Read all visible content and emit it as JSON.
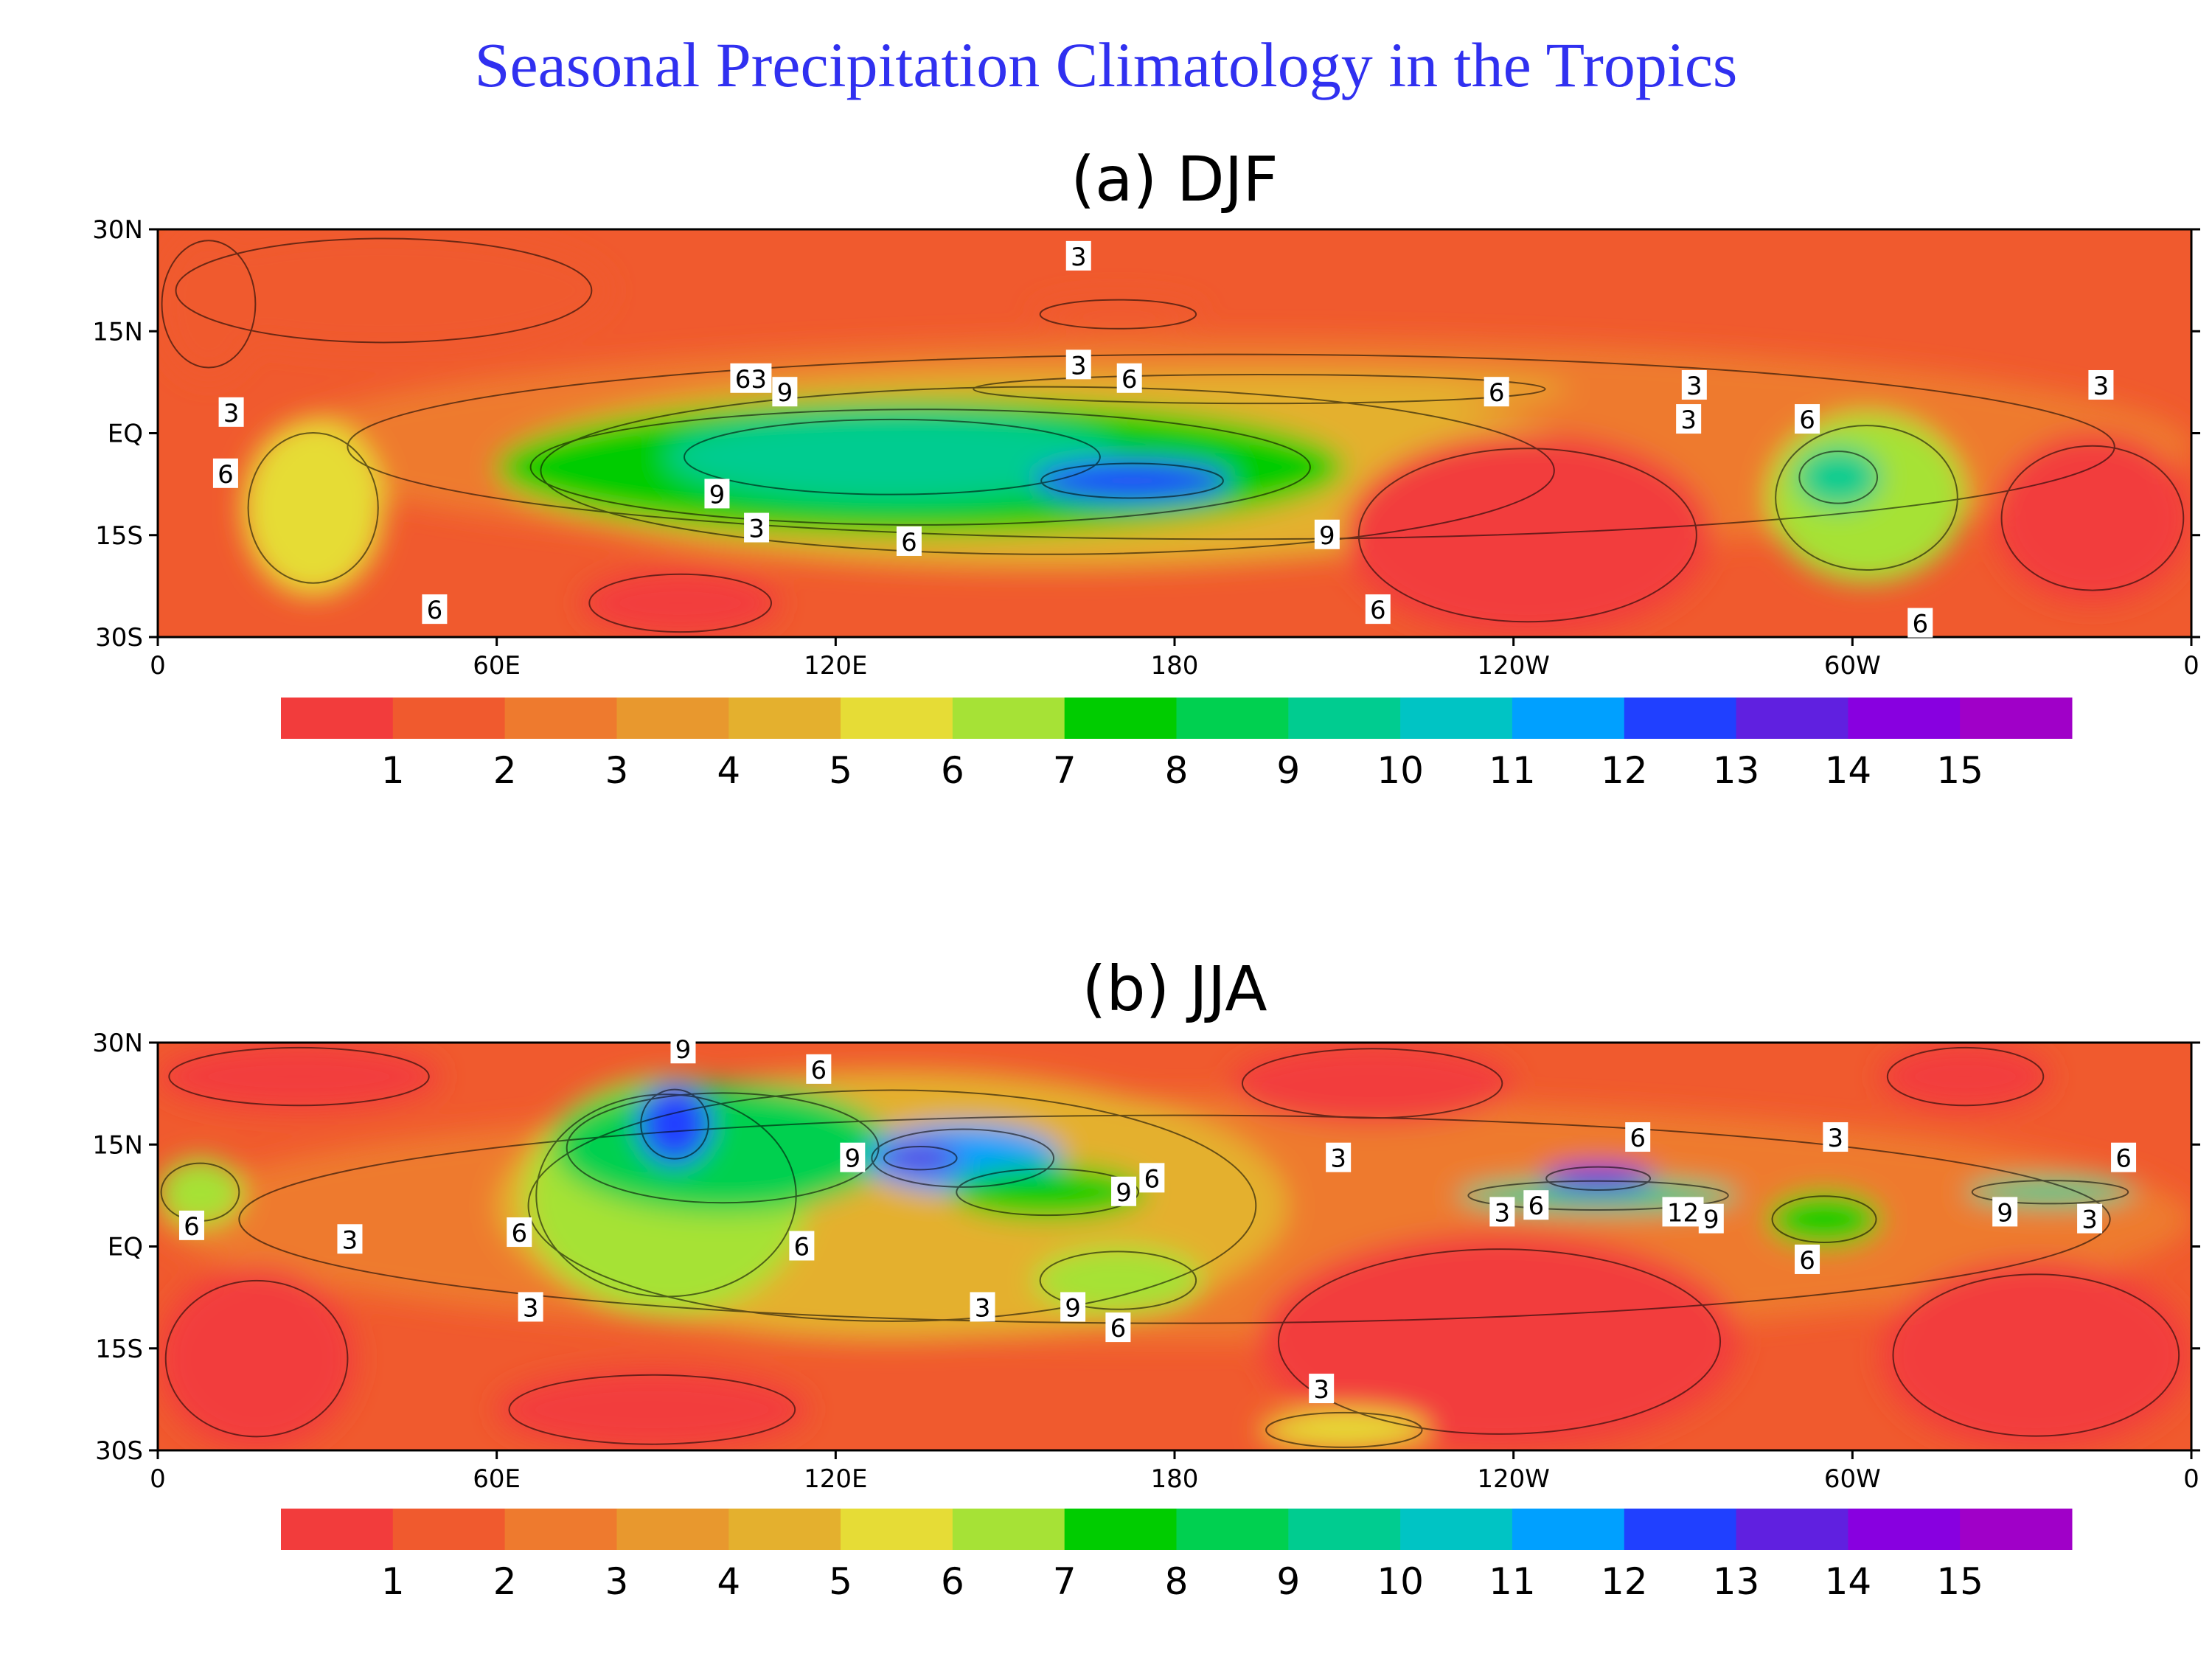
{
  "title": "Seasonal Precipitation Climatology in the Tropics",
  "colors": {
    "title": "#3030f0",
    "ocean_dry": "#f23c3c",
    "land_line": "#000000"
  },
  "colorbar": {
    "colors": [
      "#f23c3c",
      "#f05a2e",
      "#ee7a2e",
      "#e8982e",
      "#e4b02e",
      "#e6dc36",
      "#a6e236",
      "#00cc00",
      "#00d050",
      "#00cc90",
      "#00c4c4",
      "#00a0ff",
      "#2040ff",
      "#6020e0",
      "#8800e0",
      "#a000c8"
    ],
    "labels": [
      "1",
      "2",
      "3",
      "4",
      "5",
      "6",
      "7",
      "8",
      "9",
      "10",
      "11",
      "12",
      "13",
      "14",
      "15"
    ]
  },
  "axes": {
    "y_ticks": [
      "30N",
      "15N",
      "EQ",
      "15S",
      "30S"
    ],
    "x_ticks": [
      "0",
      "60E",
      "120E",
      "180",
      "120W",
      "60W",
      "0"
    ]
  },
  "panels": [
    {
      "title": "(a) DJF",
      "contour_labels": [
        {
          "text": "3",
          "lon": 163,
          "lat": 26
        },
        {
          "text": "3",
          "lon": 163,
          "lat": 10
        },
        {
          "text": "6",
          "lon": 172,
          "lat": 8
        },
        {
          "text": "6",
          "lon": 237,
          "lat": 6
        },
        {
          "text": "3",
          "lon": 272,
          "lat": 7
        },
        {
          "text": "3",
          "lon": 271,
          "lat": 2
        },
        {
          "text": "6",
          "lon": 292,
          "lat": 2
        },
        {
          "text": "3",
          "lon": 344,
          "lat": 7
        },
        {
          "text": "63",
          "lon": 105,
          "lat": 8
        },
        {
          "text": "9",
          "lon": 111,
          "lat": 6
        },
        {
          "text": "3",
          "lon": 13,
          "lat": 3
        },
        {
          "text": "6",
          "lon": 12,
          "lat": -6
        },
        {
          "text": "9",
          "lon": 99,
          "lat": -9
        },
        {
          "text": "3",
          "lon": 106,
          "lat": -14
        },
        {
          "text": "6",
          "lon": 133,
          "lat": -16
        },
        {
          "text": "9",
          "lon": 207,
          "lat": -15
        },
        {
          "text": "6",
          "lon": 216,
          "lat": -26
        },
        {
          "text": "6",
          "lon": 49,
          "lat": -26
        },
        {
          "text": "6",
          "lon": 312,
          "lat": -28
        }
      ],
      "zones": [
        {
          "level": 2,
          "lon": [
            20,
            360
          ],
          "lat": [
            -18,
            14
          ]
        },
        {
          "level": 4,
          "lon": [
            60,
            255
          ],
          "lat": [
            -20,
            9
          ]
        },
        {
          "level": 5,
          "lon": [
            15,
            40
          ],
          "lat": [
            -24,
            2
          ]
        },
        {
          "level": 7,
          "lon": [
            60,
            210
          ],
          "lat": [
            -15,
            5
          ]
        },
        {
          "level": 9,
          "lon": [
            90,
            170
          ],
          "lat": [
            -10,
            3
          ]
        },
        {
          "level": 12,
          "lon": [
            155,
            190
          ],
          "lat": [
            -10,
            -4
          ]
        },
        {
          "level": 6,
          "lon": [
            285,
            320
          ],
          "lat": [
            -22,
            3
          ]
        },
        {
          "level": 9,
          "lon": [
            290,
            305
          ],
          "lat": [
            -11,
            -2
          ]
        },
        {
          "level": 4,
          "lon": [
            140,
            250
          ],
          "lat": [
            4,
            9
          ]
        },
        {
          "level": 1,
          "lon": [
            0,
            18
          ],
          "lat": [
            8,
            30
          ]
        },
        {
          "level": 1,
          "lon": [
            0,
            80
          ],
          "lat": [
            12,
            30
          ]
        },
        {
          "level": 1,
          "lon": [
            155,
            185
          ],
          "lat": [
            15,
            20
          ]
        },
        {
          "level": 0,
          "lon": [
            210,
            275
          ],
          "lat": [
            -30,
            0
          ]
        },
        {
          "level": 0,
          "lon": [
            325,
            360
          ],
          "lat": [
            -25,
            0
          ]
        },
        {
          "level": 0,
          "lon": [
            75,
            110
          ],
          "lat": [
            -30,
            -20
          ]
        }
      ]
    },
    {
      "title": "(b) JJA",
      "contour_labels": [
        {
          "text": "9",
          "lon": 93,
          "lat": 29
        },
        {
          "text": "6",
          "lon": 117,
          "lat": 26
        },
        {
          "text": "9",
          "lon": 123,
          "lat": 13
        },
        {
          "text": "3",
          "lon": 209,
          "lat": 13
        },
        {
          "text": "9",
          "lon": 171,
          "lat": 8
        },
        {
          "text": "6",
          "lon": 176,
          "lat": 10
        },
        {
          "text": "6",
          "lon": 262,
          "lat": 16
        },
        {
          "text": "3",
          "lon": 297,
          "lat": 16
        },
        {
          "text": "6",
          "lon": 348,
          "lat": 13
        },
        {
          "text": "9",
          "lon": 327,
          "lat": 5
        },
        {
          "text": "3",
          "lon": 342,
          "lat": 4
        },
        {
          "text": "12",
          "lon": 270,
          "lat": 5
        },
        {
          "text": "9",
          "lon": 275,
          "lat": 4
        },
        {
          "text": "3",
          "lon": 238,
          "lat": 5
        },
        {
          "text": "6",
          "lon": 244,
          "lat": 6
        },
        {
          "text": "6",
          "lon": 292,
          "lat": -2
        },
        {
          "text": "6",
          "lon": 6,
          "lat": 3
        },
        {
          "text": "3",
          "lon": 34,
          "lat": 1
        },
        {
          "text": "6",
          "lon": 64,
          "lat": 2
        },
        {
          "text": "6",
          "lon": 114,
          "lat": 0
        },
        {
          "text": "3",
          "lon": 66,
          "lat": -9
        },
        {
          "text": "3",
          "lon": 146,
          "lat": -9
        },
        {
          "text": "9",
          "lon": 162,
          "lat": -9
        },
        {
          "text": "6",
          "lon": 170,
          "lat": -12
        },
        {
          "text": "3",
          "lon": 206,
          "lat": -21
        }
      ],
      "zones": [
        {
          "level": 2,
          "lon": [
            0,
            360
          ],
          "lat": [
            -14,
            22
          ]
        },
        {
          "level": 4,
          "lon": [
            60,
            200
          ],
          "lat": [
            -14,
            26
          ]
        },
        {
          "level": 6,
          "lon": [
            0,
            15
          ],
          "lat": [
            3,
            13
          ]
        },
        {
          "level": 6,
          "lon": [
            65,
            115
          ],
          "lat": [
            -10,
            25
          ]
        },
        {
          "level": 8,
          "lon": [
            70,
            130
          ],
          "lat": [
            5,
            24
          ]
        },
        {
          "level": 12,
          "lon": [
            85,
            98
          ],
          "lat": [
            12,
            24
          ]
        },
        {
          "level": 11,
          "lon": [
            125,
            160
          ],
          "lat": [
            8,
            18
          ]
        },
        {
          "level": 13,
          "lon": [
            128,
            142
          ],
          "lat": [
            11,
            15
          ]
        },
        {
          "level": 7,
          "lon": [
            140,
            175
          ],
          "lat": [
            4,
            12
          ]
        },
        {
          "level": 6,
          "lon": [
            155,
            185
          ],
          "lat": [
            -10,
            0
          ]
        },
        {
          "level": 9,
          "lon": [
            230,
            280
          ],
          "lat": [
            5,
            10
          ]
        },
        {
          "level": 13,
          "lon": [
            245,
            265
          ],
          "lat": [
            8,
            12
          ]
        },
        {
          "level": 7,
          "lon": [
            285,
            305
          ],
          "lat": [
            0,
            8
          ]
        },
        {
          "level": 9,
          "lon": [
            320,
            350
          ],
          "lat": [
            6,
            10
          ]
        },
        {
          "level": 0,
          "lon": [
            0,
            35
          ],
          "lat": [
            -30,
            -3
          ]
        },
        {
          "level": 0,
          "lon": [
            0,
            50
          ],
          "lat": [
            20,
            30
          ]
        },
        {
          "level": 0,
          "lon": [
            195,
            280
          ],
          "lat": [
            -30,
            2
          ]
        },
        {
          "level": 0,
          "lon": [
            190,
            240
          ],
          "lat": [
            18,
            30
          ]
        },
        {
          "level": 0,
          "lon": [
            305,
            360
          ],
          "lat": [
            -30,
            -2
          ]
        },
        {
          "level": 0,
          "lon": [
            305,
            335
          ],
          "lat": [
            20,
            30
          ]
        },
        {
          "level": 0,
          "lon": [
            60,
            115
          ],
          "lat": [
            -30,
            -18
          ]
        },
        {
          "level": 5,
          "lon": [
            195,
            225
          ],
          "lat": [
            -30,
            -24
          ]
        }
      ]
    }
  ]
}
